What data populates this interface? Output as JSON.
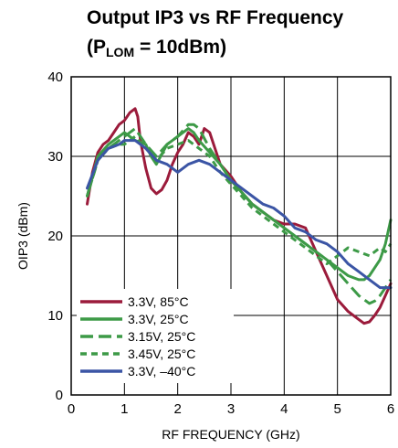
{
  "chart_data": {
    "type": "line",
    "title_line1": "Output IP3 vs RF Frequency",
    "title_line2_prefix": "(P",
    "title_line2_sub": "LOM",
    "title_line2_suffix": " = 10dBm)",
    "xlabel": "RF FREQUENCY (GHz)",
    "ylabel": "OIP3 (dBm)",
    "xlim": [
      0,
      6
    ],
    "ylim": [
      0,
      40
    ],
    "xticks": [
      0,
      1,
      2,
      3,
      4,
      5,
      6
    ],
    "yticks": [
      0,
      10,
      20,
      30,
      40
    ],
    "grid": true,
    "legend_position": "bottom-left",
    "series": [
      {
        "name": "3.3V, 85°C",
        "color": "#9b1b3b",
        "dash": "solid",
        "x": [
          0.3,
          0.4,
          0.5,
          0.6,
          0.7,
          0.8,
          0.9,
          1.0,
          1.1,
          1.2,
          1.25,
          1.3,
          1.4,
          1.5,
          1.6,
          1.7,
          1.8,
          1.9,
          2.0,
          2.1,
          2.2,
          2.3,
          2.4,
          2.5,
          2.6,
          2.7,
          2.8,
          3.0,
          3.2,
          3.4,
          3.6,
          3.8,
          4.0,
          4.2,
          4.4,
          4.6,
          4.8,
          5.0,
          5.2,
          5.4,
          5.5,
          5.6,
          5.7,
          5.8,
          5.9,
          6.0
        ],
        "y": [
          24,
          28,
          30.5,
          31.5,
          32,
          33,
          34,
          34.5,
          35.5,
          36,
          35,
          32,
          28.5,
          26,
          25.3,
          25.8,
          27,
          29,
          30.5,
          31.5,
          33,
          32.5,
          31.5,
          33.5,
          33,
          31,
          29,
          27.5,
          25.5,
          24,
          23,
          22,
          21.5,
          21.5,
          21,
          18,
          15,
          12,
          10.5,
          9.5,
          9,
          9.2,
          10,
          11,
          12.5,
          14
        ]
      },
      {
        "name": "3.3V, 25°C",
        "color": "#3d9a47",
        "dash": "solid",
        "x": [
          0.3,
          0.5,
          0.7,
          0.9,
          1.0,
          1.2,
          1.4,
          1.5,
          1.6,
          1.8,
          2.0,
          2.2,
          2.3,
          2.4,
          2.6,
          2.8,
          3.0,
          3.2,
          3.4,
          3.6,
          3.8,
          4.0,
          4.2,
          4.4,
          4.6,
          4.8,
          5.0,
          5.2,
          5.4,
          5.5,
          5.6,
          5.7,
          5.8,
          5.9,
          6.0
        ],
        "y": [
          25,
          30,
          31.5,
          32.5,
          33,
          32,
          31.5,
          30,
          29,
          31.5,
          32.5,
          33.5,
          33,
          32,
          30.5,
          29,
          27,
          25.5,
          24,
          23,
          22,
          21,
          20,
          19,
          18,
          17,
          16,
          15,
          14.5,
          14.5,
          15,
          16,
          17,
          19,
          22
        ]
      },
      {
        "name": "3.15V, 25°C",
        "color": "#3d9a47",
        "dash": "long",
        "x": [
          0.3,
          0.5,
          0.7,
          0.9,
          1.0,
          1.2,
          1.4,
          1.6,
          1.8,
          2.0,
          2.2,
          2.3,
          2.4,
          2.6,
          2.8,
          3.0,
          3.2,
          3.4,
          3.6,
          3.8,
          4.0,
          4.2,
          4.4,
          4.6,
          4.8,
          5.0,
          5.2,
          5.4,
          5.5,
          5.6,
          5.7,
          5.8,
          5.9,
          6.0
        ],
        "y": [
          25,
          29.5,
          31,
          32,
          32.5,
          33.5,
          31.5,
          30,
          31.5,
          32.5,
          34,
          34,
          33.5,
          31,
          29,
          27,
          25.5,
          24,
          23,
          22,
          21,
          20,
          19,
          18,
          17,
          15.5,
          14,
          12.5,
          12,
          11.5,
          11.8,
          12.5,
          13.5,
          14.5
        ]
      },
      {
        "name": "3.45V, 25°C",
        "color": "#3d9a47",
        "dash": "short",
        "x": [
          0.3,
          0.5,
          0.7,
          0.9,
          1.0,
          1.2,
          1.4,
          1.6,
          1.8,
          2.0,
          2.2,
          2.4,
          2.6,
          2.8,
          3.0,
          3.2,
          3.4,
          3.6,
          3.8,
          4.0,
          4.2,
          4.4,
          4.6,
          4.8,
          5.0,
          5.2,
          5.4,
          5.6,
          5.8,
          5.9,
          6.0
        ],
        "y": [
          25,
          29.5,
          31,
          31.5,
          31.5,
          32.5,
          31,
          29.5,
          31,
          31.5,
          32,
          31,
          30,
          28,
          26.5,
          25,
          23.5,
          22.5,
          21.5,
          20.5,
          19.5,
          18.5,
          17.5,
          16.5,
          17.5,
          18.5,
          18,
          17.5,
          18.5,
          18,
          19
        ]
      },
      {
        "name": "3.3V, –40°C",
        "color": "#3b55a5",
        "dash": "solid",
        "x": [
          0.3,
          0.5,
          0.7,
          0.9,
          1.0,
          1.2,
          1.4,
          1.6,
          1.8,
          2.0,
          2.2,
          2.4,
          2.6,
          2.8,
          3.0,
          3.2,
          3.4,
          3.6,
          3.8,
          4.0,
          4.2,
          4.4,
          4.6,
          4.8,
          5.0,
          5.2,
          5.4,
          5.6,
          5.8,
          5.9,
          6.0
        ],
        "y": [
          26,
          29.5,
          31,
          31.5,
          32,
          32,
          31,
          29.5,
          29,
          28,
          29,
          29.5,
          29,
          28,
          27,
          26,
          25,
          24,
          23.5,
          22.5,
          21,
          20.5,
          19.5,
          19,
          18,
          16.5,
          15.5,
          14.5,
          13.5,
          13.5,
          13.5
        ]
      }
    ]
  }
}
